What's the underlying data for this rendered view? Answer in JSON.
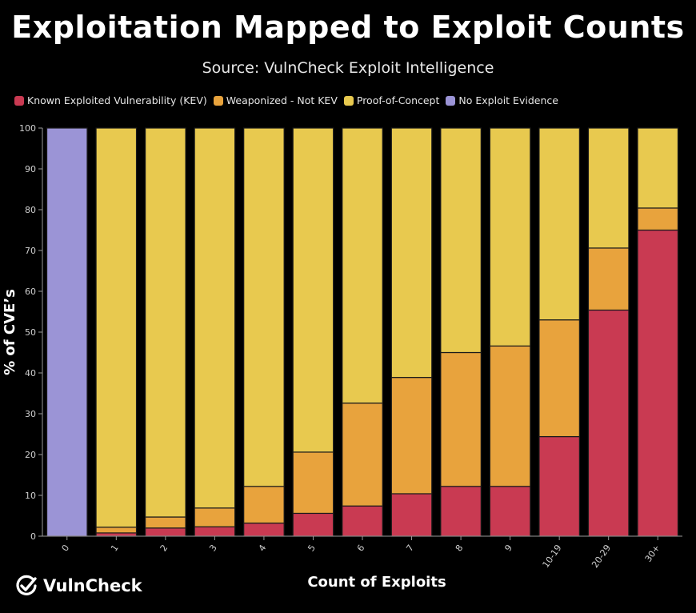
{
  "title": "Exploitation Mapped to Exploit Counts",
  "subtitle": "Source: VulnCheck Exploit Intelligence",
  "brand": "VulnCheck",
  "chart_data": {
    "type": "bar",
    "stacked": true,
    "title": "Exploitation Mapped to Exploit Counts",
    "xlabel": "Count of Exploits",
    "ylabel": "% of CVE’s",
    "ylim": [
      0,
      100
    ],
    "yticks": [
      "0",
      "10",
      "20",
      "30",
      "40",
      "50",
      "60",
      "70",
      "80",
      "90",
      "100"
    ],
    "categories": [
      "0",
      "1",
      "2",
      "3",
      "4",
      "5",
      "6",
      "7",
      "8",
      "9",
      "10-19",
      "20-29",
      "30+"
    ],
    "legend_position": "top-left",
    "series": [
      {
        "name": "Known Exploited Vulnerability (KEV)",
        "color": "#c93a52",
        "values": [
          0,
          0.8,
          2,
          2.3,
          3.2,
          5.6,
          7.4,
          10.4,
          12.2,
          12.2,
          24.4,
          55.4,
          75
        ]
      },
      {
        "name": "Weaponized - Not KEV",
        "color": "#e8a33d",
        "values": [
          0,
          1.4,
          2.7,
          4.6,
          9,
          15,
          25.2,
          28.5,
          32.8,
          34.4,
          28.6,
          15.2,
          5.4
        ]
      },
      {
        "name": "Proof-of-Concept",
        "color": "#e8c94f",
        "values": [
          0,
          97.8,
          95.3,
          93.1,
          87.8,
          79.4,
          67.4,
          61.1,
          55,
          53.4,
          47,
          29.4,
          19.6
        ]
      },
      {
        "name": "No Exploit Evidence",
        "color": "#9b94d6",
        "values": [
          100,
          0,
          0,
          0,
          0,
          0,
          0,
          0,
          0,
          0,
          0,
          0,
          0
        ]
      }
    ]
  }
}
